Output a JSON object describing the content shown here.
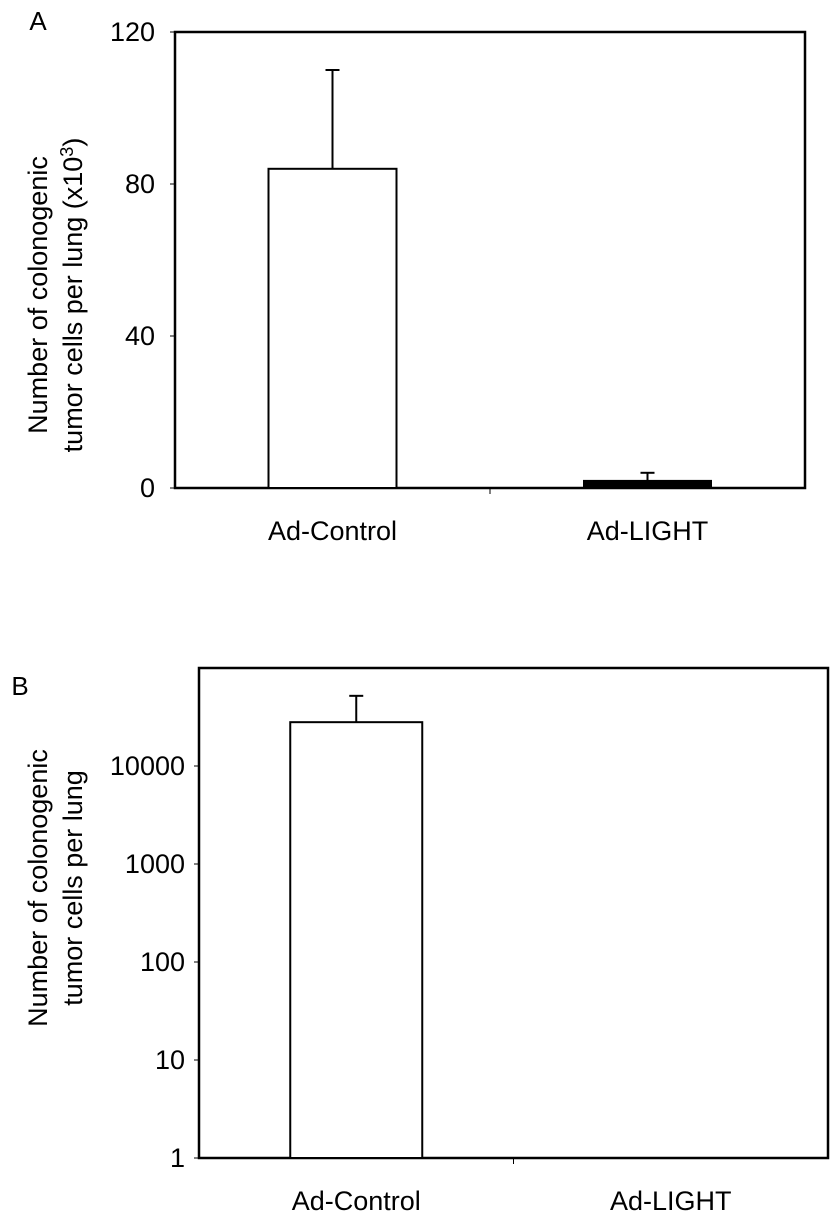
{
  "chart_data": [
    {
      "panel": "A",
      "type": "bar",
      "categories": [
        "Ad-Control",
        "Ad-LIGHT"
      ],
      "values": [
        84,
        2
      ],
      "errors": [
        26,
        2
      ],
      "ylabel_line1": "Number of colonogenic",
      "ylabel_line2": "tumor cells per lung (x10",
      "ylabel_sup": "3",
      "ylabel_close": ")",
      "ylim": [
        0,
        120
      ],
      "yticks": [
        "0",
        "40",
        "80",
        "120"
      ],
      "yscale": "linear",
      "bar_colors": [
        "#ffffff",
        "#000000"
      ],
      "grid": false
    },
    {
      "panel": "B",
      "type": "bar",
      "categories": [
        "Ad-Control",
        "Ad-LIGHT"
      ],
      "values": [
        28000,
        1
      ],
      "error_top": [
        52000,
        1
      ],
      "ylabel_line1": "Number of colonogenic",
      "ylabel_line2": "tumor cells per lung",
      "ylim": [
        1,
        100000
      ],
      "yticks": [
        "1",
        "10",
        "100",
        "1000",
        "10000"
      ],
      "yscale": "log",
      "bar_colors": [
        "#ffffff",
        "#000000"
      ],
      "grid": false
    }
  ]
}
